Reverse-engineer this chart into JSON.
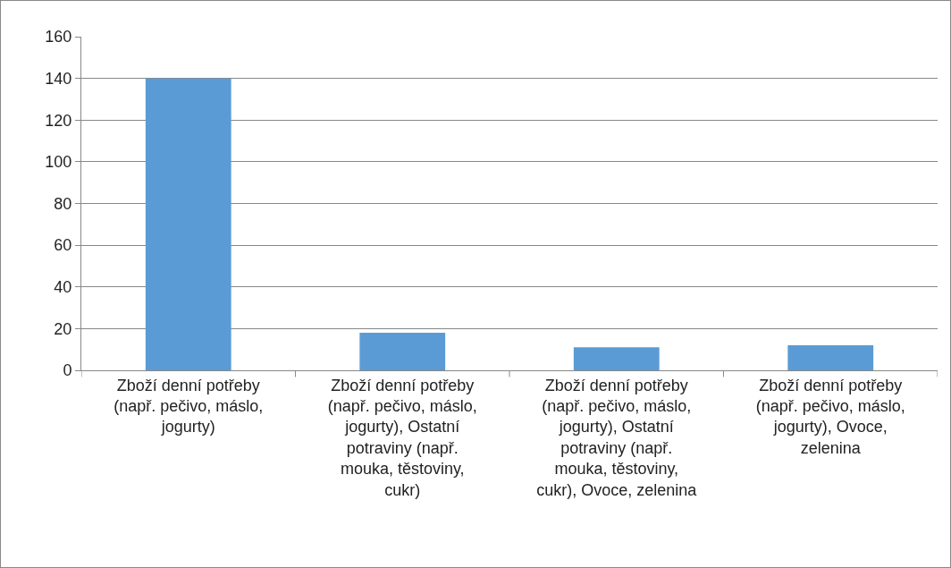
{
  "chart_data": {
    "type": "bar",
    "categories": [
      "Zboží denní potřeby (např. pečivo, máslo, jogurty)",
      "Zboží denní potřeby (např. pečivo, máslo, jogurty), Ostatní potraviny (např. mouka, těstoviny, cukr)",
      "Zboží denní potřeby (např. pečivo, máslo, jogurty), Ostatní potraviny (např. mouka, těstoviny, cukr), Ovoce, zelenina",
      "Zboží denní potřeby (např. pečivo, máslo, jogurty), Ovoce, zelenina"
    ],
    "values": [
      140,
      18,
      11,
      12
    ],
    "color": "#5b9bd5",
    "ylim": [
      0,
      160
    ],
    "yticks": [
      0,
      20,
      40,
      60,
      80,
      100,
      120,
      140,
      160
    ],
    "grid": "y"
  }
}
